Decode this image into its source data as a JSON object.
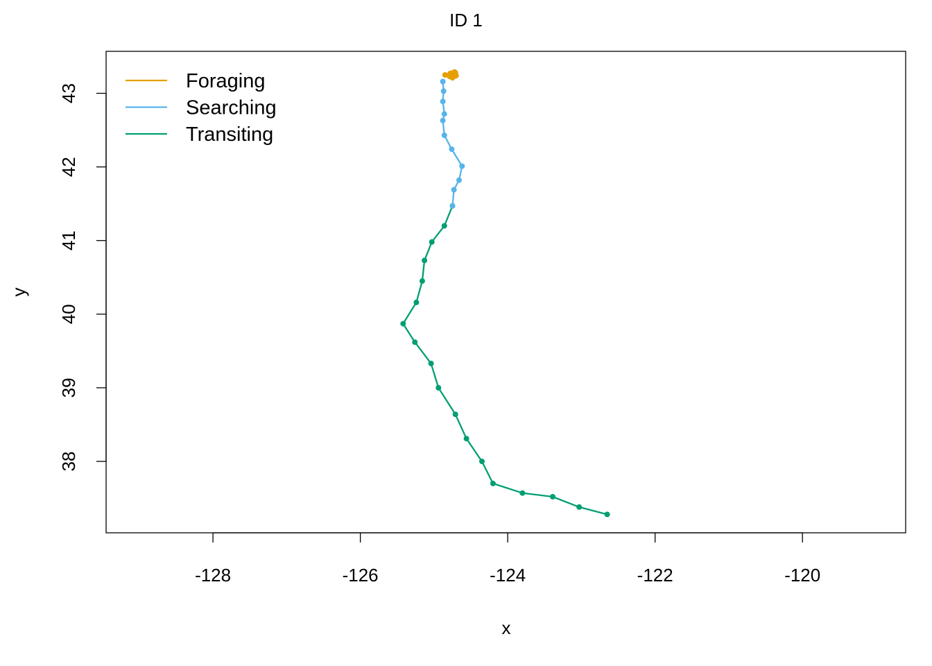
{
  "chart_data": {
    "type": "line",
    "title": "ID 1",
    "xlabel": "x",
    "ylabel": "y",
    "xlim": [
      -129.45,
      -118.6
    ],
    "ylim": [
      37.03,
      43.57
    ],
    "x_ticks": [
      -128,
      -126,
      -124,
      -122,
      -120
    ],
    "y_ticks": [
      38,
      39,
      40,
      41,
      42,
      43
    ],
    "grid": false,
    "legend_position": "top-left",
    "series": [
      {
        "name": "Foraging",
        "color": "#E69F00",
        "points": [
          [
            -124.85,
            43.25
          ],
          [
            -124.78,
            43.27
          ],
          [
            -124.72,
            43.29
          ],
          [
            -124.76,
            43.22
          ],
          [
            -124.7,
            43.24
          ],
          [
            -124.74,
            43.28
          ],
          [
            -124.79,
            43.23
          ],
          [
            -124.72,
            43.26
          ],
          [
            -124.75,
            43.21
          ],
          [
            -124.71,
            43.28
          ],
          [
            -124.77,
            43.25
          ],
          [
            -124.73,
            43.23
          ]
        ]
      },
      {
        "name": "Searching",
        "color": "#56B4E9",
        "points": [
          [
            -124.88,
            43.16
          ],
          [
            -124.87,
            43.03
          ],
          [
            -124.88,
            42.89
          ],
          [
            -124.86,
            42.72
          ],
          [
            -124.88,
            42.63
          ],
          [
            -124.86,
            42.43
          ],
          [
            -124.76,
            42.24
          ],
          [
            -124.62,
            42.01
          ],
          [
            -124.66,
            41.82
          ],
          [
            -124.73,
            41.69
          ],
          [
            -124.75,
            41.47
          ]
        ]
      },
      {
        "name": "Transiting",
        "color": "#009E73",
        "points": [
          [
            -124.75,
            41.47
          ],
          [
            -124.86,
            41.2
          ],
          [
            -125.03,
            40.98
          ],
          [
            -125.13,
            40.73
          ],
          [
            -125.16,
            40.45
          ],
          [
            -125.24,
            40.16
          ],
          [
            -125.42,
            39.87
          ],
          [
            -125.26,
            39.62
          ],
          [
            -125.04,
            39.33
          ],
          [
            -124.94,
            39.0
          ],
          [
            -124.71,
            38.64
          ],
          [
            -124.56,
            38.31
          ],
          [
            -124.35,
            38.0
          ],
          [
            -124.2,
            37.7
          ],
          [
            -123.8,
            37.57
          ],
          [
            -123.39,
            37.52
          ],
          [
            -123.03,
            37.38
          ],
          [
            -122.65,
            37.28
          ]
        ]
      }
    ]
  }
}
